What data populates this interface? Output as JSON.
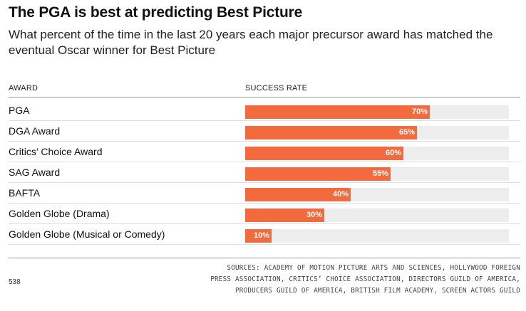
{
  "title": "The PGA is best at predicting Best Picture",
  "subtitle": "What percent of the time in the last 20 years each major precursor award has matched the eventual Oscar winner for Best Picture",
  "columns": {
    "award": "AWARD",
    "rate": "SUCCESS RATE"
  },
  "colors": {
    "bar": "#f26a3d",
    "track": "#ededed"
  },
  "chart_data": {
    "type": "bar",
    "orientation": "horizontal",
    "categories": [
      "PGA",
      "DGA Award",
      "Critics’ Choice Award",
      "SAG Award",
      "BAFTA",
      "Golden Globe (Drama)",
      "Golden Globe (Musical or Comedy)"
    ],
    "values": [
      70,
      65,
      60,
      55,
      40,
      30,
      10
    ],
    "value_labels": [
      "70%",
      "65%",
      "60%",
      "55%",
      "40%",
      "30%",
      "10%"
    ],
    "xlim": [
      0,
      100
    ],
    "title": "The PGA is best at predicting Best Picture"
  },
  "footer": {
    "source": "538",
    "sources": "SOURCES: ACADEMY OF MOTION PICTURE ARTS AND SCIENCES, HOLLYWOOD FOREIGN PRESS ASSOCIATION, CRITICS’ CHOICE ASSOCIATION, DIRECTORS GUILD OF AMERICA, PRODUCERS GUILD OF AMERICA, BRITISH FILM ACADEMY, SCREEN ACTORS GUILD"
  }
}
